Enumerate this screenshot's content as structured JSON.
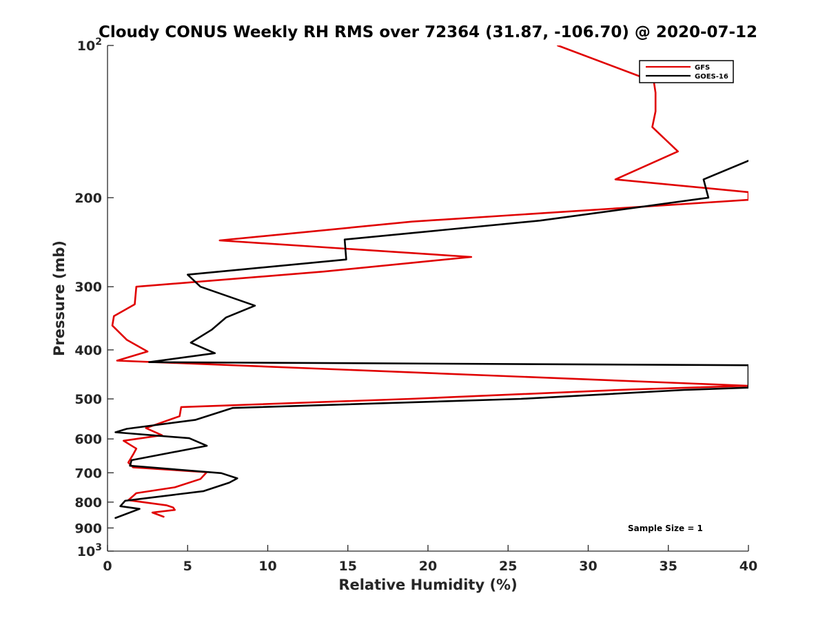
{
  "chart_data": {
    "type": "line",
    "title": "Cloudy CONUS Weekly RH RMS over 72364 (31.87, -106.70) @ 2020-07-12",
    "xlabel": "Relative Humidity (%)",
    "ylabel": "Pressure (mb)",
    "xlim": [
      0,
      40
    ],
    "ylim": [
      100,
      1000
    ],
    "y_scale": "log",
    "y_reversed": true,
    "grid": false,
    "legend_position": "top-right",
    "x_ticks": [
      "0",
      "5",
      "10",
      "15",
      "20",
      "25",
      "30",
      "35",
      "40"
    ],
    "y_ticks": [
      {
        "value": 100,
        "label": "10",
        "sup": "2"
      },
      {
        "value": 200,
        "label": "200",
        "sup": ""
      },
      {
        "value": 300,
        "label": "300",
        "sup": ""
      },
      {
        "value": 400,
        "label": "400",
        "sup": ""
      },
      {
        "value": 500,
        "label": "500",
        "sup": ""
      },
      {
        "value": 600,
        "label": "600",
        "sup": ""
      },
      {
        "value": 700,
        "label": "700",
        "sup": ""
      },
      {
        "value": 800,
        "label": "800",
        "sup": ""
      },
      {
        "value": 900,
        "label": "900",
        "sup": ""
      },
      {
        "value": 1000,
        "label": "10",
        "sup": "3"
      }
    ],
    "annotation": "Sample Size = 1",
    "series": [
      {
        "name": "GFS",
        "color": "#e00000",
        "points": [
          [
            28.1,
            100
          ],
          [
            33.2,
            115
          ],
          [
            34.1,
            118
          ],
          [
            34.2,
            124
          ],
          [
            34.2,
            135
          ],
          [
            34.0,
            145
          ],
          [
            35.6,
            162
          ],
          [
            31.7,
            184
          ],
          [
            40.0,
            195
          ],
          [
            40.0,
            202
          ],
          [
            19.0,
            223
          ],
          [
            7.0,
            243
          ],
          [
            22.7,
            262
          ],
          [
            13.5,
            280
          ],
          [
            1.8,
            300
          ],
          [
            1.7,
            325
          ],
          [
            0.4,
            343
          ],
          [
            0.3,
            358
          ],
          [
            1.2,
            382
          ],
          [
            2.5,
            403
          ],
          [
            0.6,
            420
          ],
          [
            40.0,
            471
          ],
          [
            32.6,
            479
          ],
          [
            18.9,
            500
          ],
          [
            4.6,
            519
          ],
          [
            4.5,
            541
          ],
          [
            2.4,
            571
          ],
          [
            3.4,
            590
          ],
          [
            1.0,
            605
          ],
          [
            1.8,
            627
          ],
          [
            1.6,
            644
          ],
          [
            1.3,
            668
          ],
          [
            1.6,
            683
          ],
          [
            6.2,
            698
          ],
          [
            5.8,
            720
          ],
          [
            4.2,
            748
          ],
          [
            1.8,
            768
          ],
          [
            1.3,
            793
          ],
          [
            3.7,
            812
          ],
          [
            4.1,
            820
          ],
          [
            4.2,
            829
          ],
          [
            2.8,
            839
          ],
          [
            3.5,
            855
          ]
        ]
      },
      {
        "name": "GOES-16",
        "color": "#000000",
        "points": [
          [
            40.0,
            169
          ],
          [
            37.2,
            184
          ],
          [
            37.5,
            200
          ],
          [
            27.0,
            222
          ],
          [
            14.8,
            242
          ],
          [
            14.9,
            265
          ],
          [
            5.0,
            284
          ],
          [
            5.8,
            300
          ],
          [
            9.2,
            327
          ],
          [
            7.4,
            345
          ],
          [
            6.5,
            365
          ],
          [
            5.2,
            387
          ],
          [
            6.7,
            406
          ],
          [
            2.6,
            423
          ],
          [
            40.0,
            429
          ],
          [
            40.0,
            475
          ],
          [
            36.0,
            480
          ],
          [
            25.8,
            500
          ],
          [
            7.8,
            521
          ],
          [
            5.5,
            550
          ],
          [
            1.2,
            573
          ],
          [
            0.5,
            582
          ],
          [
            5.1,
            598
          ],
          [
            6.2,
            619
          ],
          [
            1.5,
            661
          ],
          [
            1.4,
            678
          ],
          [
            7.1,
            701
          ],
          [
            8.1,
            718
          ],
          [
            7.6,
            732
          ],
          [
            6.0,
            761
          ],
          [
            1.1,
            795
          ],
          [
            0.8,
            815
          ],
          [
            2.0,
            825
          ],
          [
            0.5,
            860
          ]
        ]
      }
    ]
  }
}
